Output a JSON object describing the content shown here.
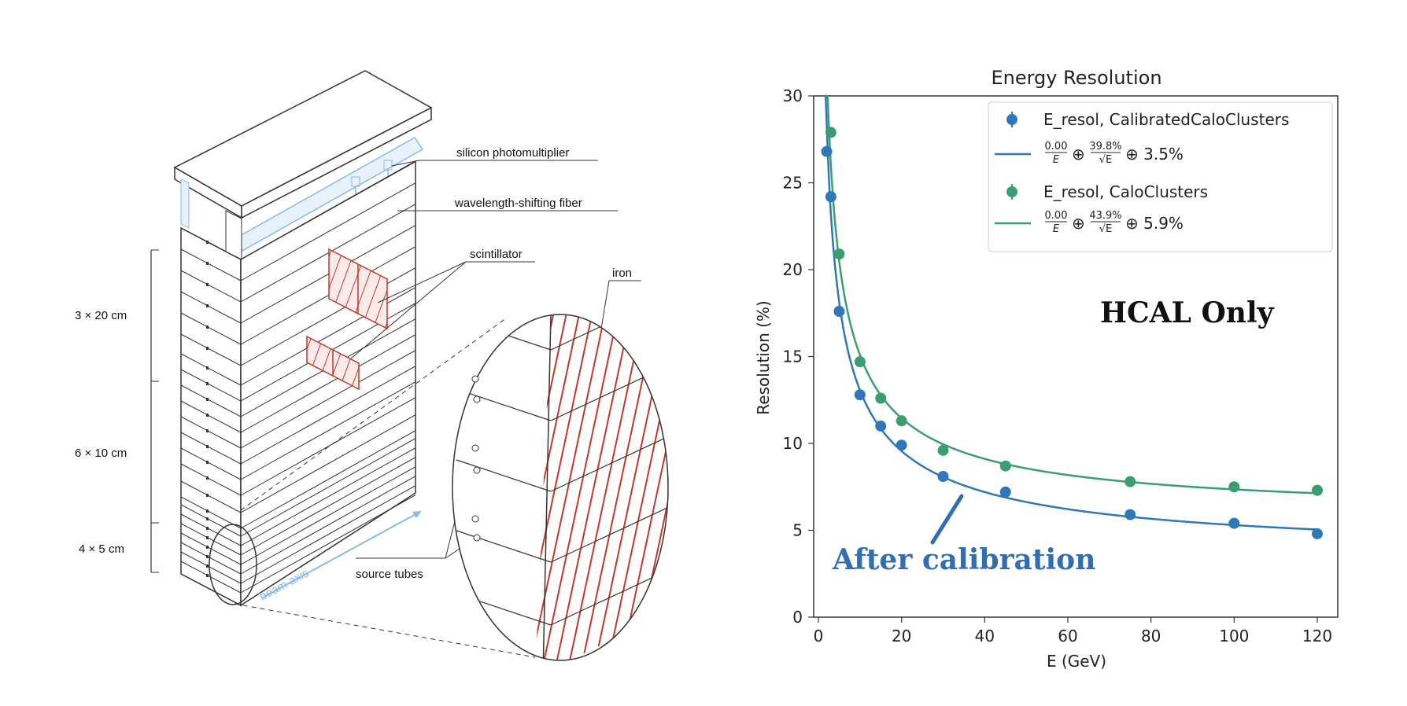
{
  "diagram": {
    "labels": {
      "sipm": "silicon photomultiplier",
      "wls": "wavelength-shifting fiber",
      "scint": "scintillator",
      "iron": "iron",
      "source": "source tubes",
      "beam": "beam axis",
      "seg1": "3 × 20 cm",
      "seg2": "6 × 10 cm",
      "seg3": "4 × 5 cm"
    },
    "colors": {
      "red": "#c0392b",
      "blue": "#8ab9e6",
      "line": "#333333"
    }
  },
  "chart_data": {
    "type": "scatter",
    "title": "Energy Resolution",
    "xlabel": "E (GeV)",
    "ylabel": "Resolution (%)",
    "xlim": [
      0,
      125
    ],
    "ylim": [
      0,
      30
    ],
    "xticks": [
      0,
      20,
      40,
      60,
      80,
      100,
      120
    ],
    "yticks": [
      0,
      5,
      10,
      15,
      20,
      25,
      30
    ],
    "series": [
      {
        "name": "E_resol, CalibratedCaloClusters",
        "color": "#2f77b8",
        "x": [
          2,
          3,
          5,
          10,
          15,
          20,
          30,
          45,
          75,
          100,
          120
        ],
        "y": [
          26.8,
          24.2,
          17.6,
          12.8,
          11.0,
          9.9,
          8.1,
          7.2,
          5.9,
          5.4,
          4.8
        ],
        "fit": {
          "a": 0.0,
          "b": 39.8,
          "c": 3.5
        },
        "fit_label": {
          "num_a": "0.00",
          "den_a": "E",
          "num_b": "39.8%",
          "den_b": "√E",
          "const": "⊕ 3.5%"
        }
      },
      {
        "name": "E_resol, CaloClusters",
        "color": "#3a9e6e",
        "x": [
          3,
          5,
          10,
          15,
          20,
          30,
          45,
          75,
          100,
          120
        ],
        "y": [
          27.9,
          20.9,
          14.7,
          12.6,
          11.3,
          9.6,
          8.7,
          7.8,
          7.5,
          7.3
        ],
        "fit": {
          "a": 0.0,
          "b": 43.9,
          "c": 5.9
        },
        "fit_label": {
          "num_a": "0.00",
          "den_a": "E",
          "num_b": "43.9%",
          "den_b": "√E",
          "const": "⊕ 5.9%"
        }
      }
    ],
    "oplus": "⊕",
    "annotations": {
      "hcal": "HCAL Only",
      "calibration": "After calibration"
    },
    "legend_position": "top-right"
  }
}
